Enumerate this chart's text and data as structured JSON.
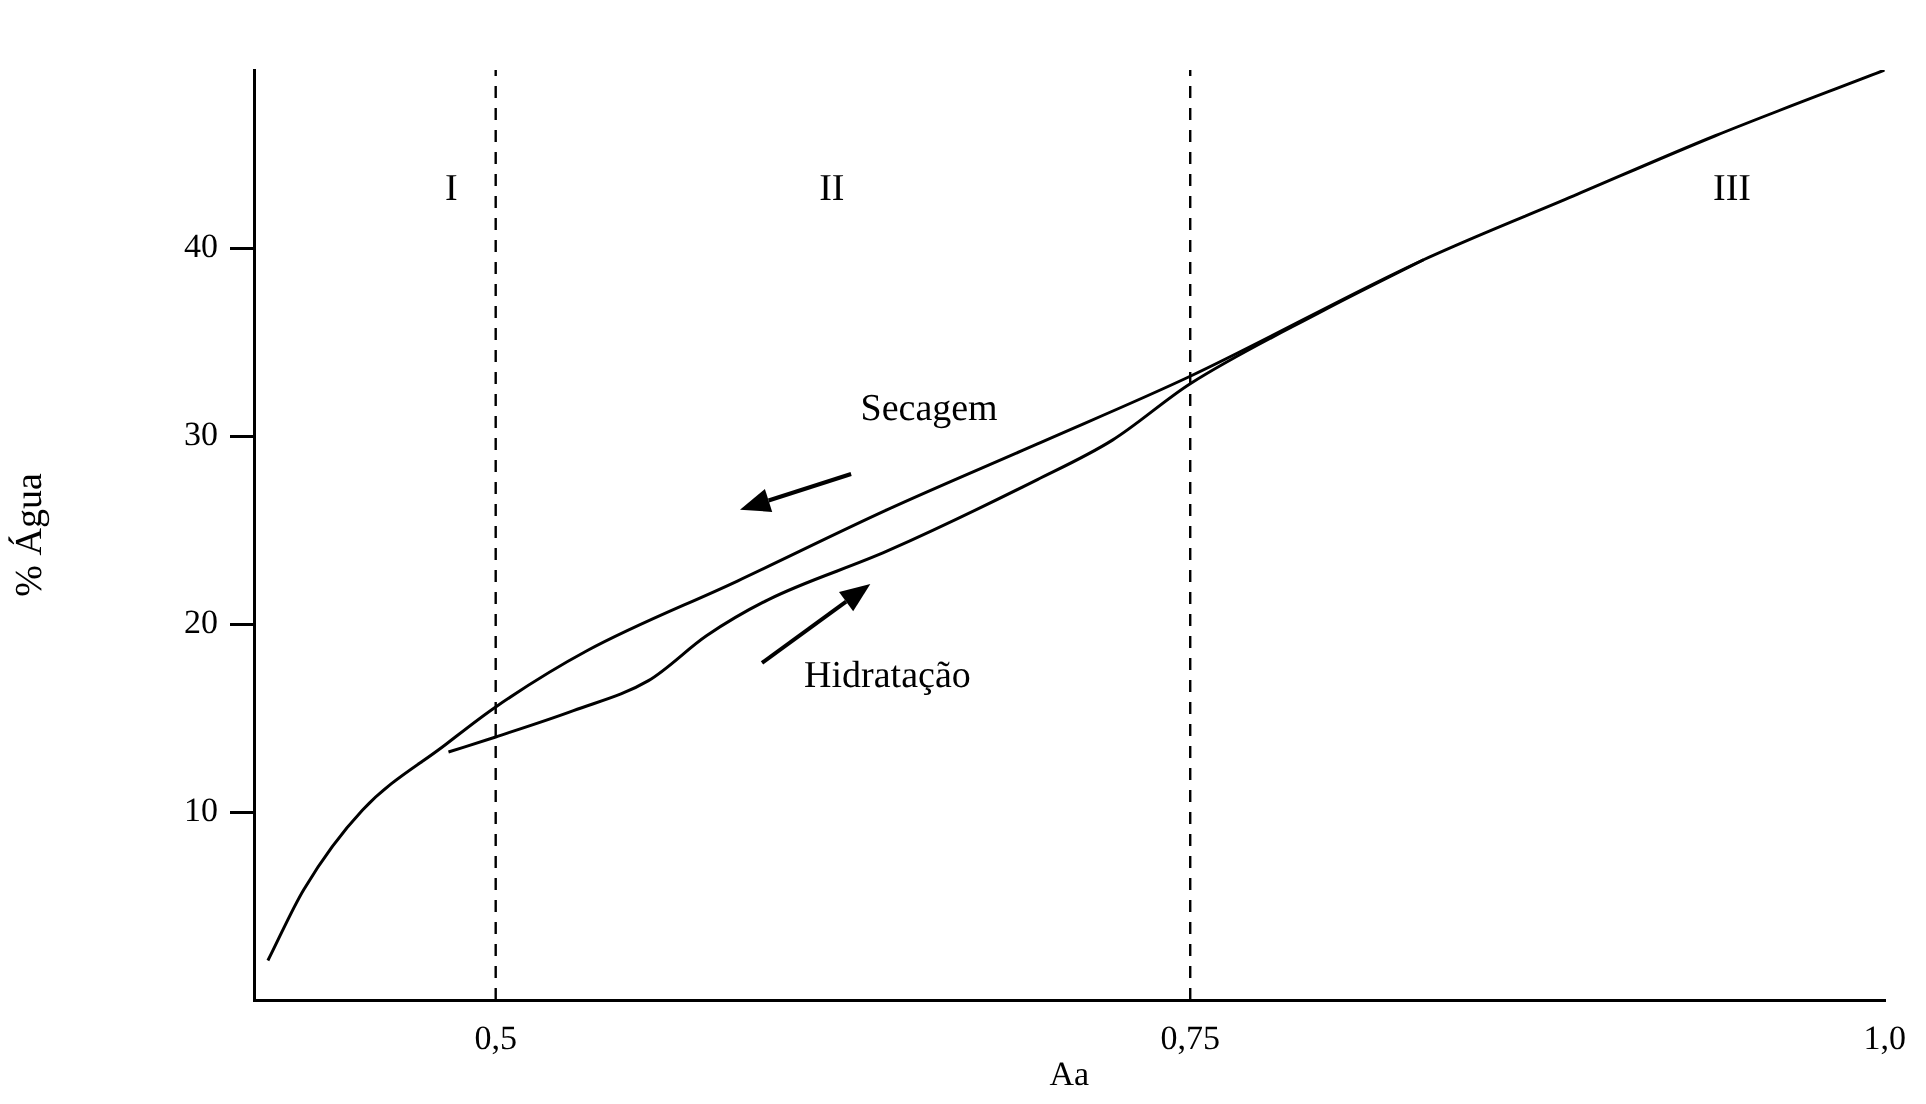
{
  "chart_data": {
    "type": "line",
    "xlabel": "Aa",
    "ylabel": "% Água",
    "xlim": [
      0.413,
      1.0
    ],
    "xticks": [
      {
        "value": 0.5,
        "label": "0,5"
      },
      {
        "value": 0.75,
        "label": "0,75"
      },
      {
        "value": 1.0,
        "label": "1,0"
      }
    ],
    "ylim": [
      0,
      49.5
    ],
    "yticks": [
      10,
      20,
      30,
      40
    ],
    "series": [
      {
        "color": "#000000",
        "x": [
          0.418,
          0.431,
          0.452,
          0.482,
          0.5,
          0.533,
          0.587,
          0.641,
          0.695,
          0.75,
          0.834,
          0.888,
          0.939,
          1.0
        ],
        "values": [
          2.1,
          5.9,
          10.1,
          13.6,
          15.6,
          18.6,
          22.3,
          26.1,
          29.6,
          33.2,
          39.4,
          42.8,
          46.0,
          49.5
        ]
      },
      {
        "color": "#000000",
        "x": [
          0.483,
          0.5,
          0.528,
          0.555,
          0.576,
          0.598,
          0.641,
          0.695,
          0.722,
          0.75,
          0.798,
          0.834
        ],
        "values": [
          13.2,
          14.0,
          15.4,
          17.0,
          19.4,
          21.3,
          23.9,
          27.7,
          29.8,
          32.8,
          36.7,
          39.4
        ]
      }
    ],
    "ref_lines": [
      {
        "axis": "x",
        "value": 0.5,
        "line_style": "dashed"
      },
      {
        "axis": "x",
        "value": 0.75,
        "line_style": "dashed"
      }
    ],
    "annotations": [
      "I",
      "II",
      "III",
      "Secagem",
      "Hidratação"
    ],
    "grid": false,
    "legend": false,
    "marker": "none",
    "line_style": "solid"
  }
}
